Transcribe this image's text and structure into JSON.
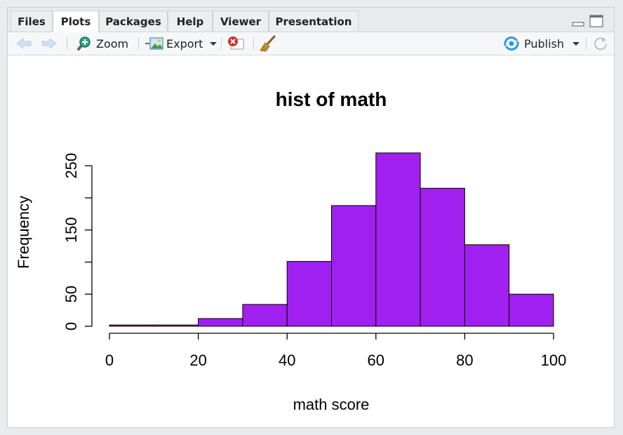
{
  "tabs": [
    {
      "label": "Files"
    },
    {
      "label": "Plots"
    },
    {
      "label": "Packages"
    },
    {
      "label": "Help"
    },
    {
      "label": "Viewer"
    },
    {
      "label": "Presentation"
    }
  ],
  "active_tab": "Plots",
  "toolbar": {
    "zoom_label": "Zoom",
    "export_label": "Export",
    "publish_label": "Publish"
  },
  "colors": {
    "bar_fill": "#a020f0",
    "publish_accent": "#2e9bd6"
  },
  "chart_data": {
    "type": "bar",
    "title": "hist of math",
    "xlabel": "math score",
    "ylabel": "Frequency",
    "bins": [
      [
        0,
        10
      ],
      [
        10,
        20
      ],
      [
        20,
        30
      ],
      [
        30,
        40
      ],
      [
        40,
        50
      ],
      [
        50,
        60
      ],
      [
        60,
        70
      ],
      [
        70,
        80
      ],
      [
        80,
        90
      ],
      [
        90,
        100
      ]
    ],
    "values": [
      2,
      2,
      12,
      34,
      101,
      188,
      270,
      215,
      127,
      50
    ],
    "x_ticks": [
      "0",
      "20",
      "40",
      "60",
      "80",
      "100"
    ],
    "y_ticks": [
      "0",
      "50",
      "150",
      "250"
    ],
    "xlim": [
      0,
      100
    ],
    "ylim": [
      0,
      250
    ],
    "grid": false
  }
}
